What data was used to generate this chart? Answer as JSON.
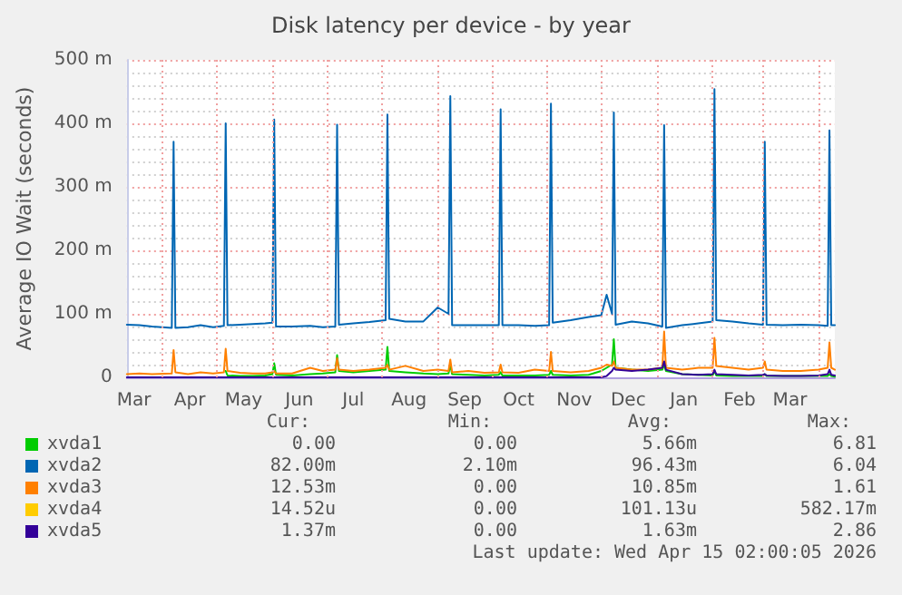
{
  "chart_data": {
    "type": "line",
    "title": "Disk latency per device - by year",
    "ylabel": "Average IO Wait (seconds)",
    "x": [
      "2025-03-12",
      "2025-03-19",
      "2025-03-26",
      "2025-04-06",
      "2025-04-07",
      "2025-04-08",
      "2025-04-15",
      "2025-04-22",
      "2025-04-29",
      "2025-05-05",
      "2025-05-06",
      "2025-05-07",
      "2025-05-14",
      "2025-05-21",
      "2025-05-28",
      "2025-06-01",
      "2025-06-02",
      "2025-06-03",
      "2025-06-12",
      "2025-06-22",
      "2025-06-29",
      "2025-07-06",
      "2025-07-07",
      "2025-07-08",
      "2025-07-16",
      "2025-07-25",
      "2025-08-03",
      "2025-08-04",
      "2025-08-05",
      "2025-08-14",
      "2025-08-24",
      "2025-09-01",
      "2025-09-07",
      "2025-09-08",
      "2025-09-09",
      "2025-09-18",
      "2025-09-27",
      "2025-10-05",
      "2025-10-06",
      "2025-10-07",
      "2025-10-16",
      "2025-10-25",
      "2025-11-02",
      "2025-11-03",
      "2025-11-04",
      "2025-11-14",
      "2025-11-24",
      "2025-12-01",
      "2025-12-04",
      "2025-12-07",
      "2025-12-08",
      "2025-12-09",
      "2025-12-18",
      "2025-12-27",
      "2026-01-04",
      "2026-01-05",
      "2026-01-06",
      "2026-01-15",
      "2026-01-24",
      "2026-02-01",
      "2026-02-02",
      "2026-02-03",
      "2026-02-12",
      "2026-02-21",
      "2026-03-01",
      "2026-03-02",
      "2026-03-03",
      "2026-03-12",
      "2026-03-22",
      "2026-04-01",
      "2026-04-06",
      "2026-04-07",
      "2026-04-08",
      "2026-04-10"
    ],
    "series": [
      {
        "name": "xvda1",
        "color": "#00cc00",
        "values": [
          null,
          null,
          null,
          null,
          null,
          null,
          null,
          null,
          null,
          null,
          10,
          3,
          2,
          2,
          3,
          5,
          22,
          4,
          3,
          5,
          6,
          8,
          35,
          10,
          8,
          10,
          12,
          48,
          10,
          8,
          6,
          5,
          6,
          20,
          5,
          4,
          3,
          4,
          8,
          3,
          3,
          3,
          4,
          10,
          4,
          3,
          4,
          10,
          15,
          20,
          60,
          15,
          12,
          10,
          12,
          20,
          10,
          5,
          4,
          3,
          10,
          3,
          2,
          2,
          2,
          5,
          2,
          2,
          2,
          2,
          2,
          5,
          2,
          1
        ]
      },
      {
        "name": "xvda2",
        "color": "#0066b3",
        "values": [
          83,
          82,
          80,
          78,
          371,
          78,
          79,
          82,
          79,
          81,
          400,
          82,
          83,
          84,
          85,
          86,
          406,
          80,
          80,
          81,
          79,
          80,
          398,
          83,
          85,
          87,
          90,
          414,
          92,
          88,
          88,
          110,
          100,
          443,
          82,
          82,
          82,
          82,
          422,
          82,
          82,
          81,
          82,
          431,
          86,
          90,
          95,
          98,
          130,
          100,
          417,
          83,
          88,
          85,
          80,
          397,
          78,
          82,
          85,
          88,
          454,
          90,
          88,
          85,
          83,
          371,
          83,
          82,
          83,
          82,
          81,
          389,
          82,
          82
        ]
      },
      {
        "name": "xvda3",
        "color": "#ff8000",
        "values": [
          5,
          6,
          5,
          6,
          43,
          8,
          5,
          8,
          6,
          8,
          45,
          10,
          7,
          6,
          6,
          8,
          10,
          6,
          6,
          15,
          10,
          12,
          30,
          12,
          10,
          12,
          15,
          20,
          12,
          18,
          10,
          12,
          10,
          28,
          8,
          10,
          7,
          8,
          20,
          8,
          7,
          12,
          10,
          40,
          10,
          8,
          10,
          15,
          20,
          18,
          25,
          15,
          12,
          12,
          15,
          72,
          15,
          12,
          15,
          15,
          62,
          18,
          15,
          12,
          15,
          25,
          12,
          10,
          10,
          12,
          15,
          55,
          15,
          12
        ]
      },
      {
        "name": "xvda4",
        "color": "#ffcc00",
        "values": [
          null,
          null,
          null,
          null,
          null,
          null,
          null,
          null,
          null,
          null,
          null,
          null,
          null,
          null,
          null,
          null,
          null,
          null,
          null,
          null,
          null,
          null,
          null,
          null,
          null,
          null,
          null,
          null,
          null,
          null,
          null,
          null,
          null,
          null,
          null,
          null,
          null,
          null,
          null,
          null,
          null,
          null,
          null,
          null,
          null,
          null,
          null,
          null,
          null,
          null,
          null,
          null,
          null,
          null,
          null,
          null,
          null,
          null,
          null,
          null,
          null,
          null,
          null,
          null,
          null,
          null,
          null,
          null,
          null,
          null,
          null,
          null,
          null,
          null
        ]
      },
      {
        "name": "xvda5",
        "color": "#330099",
        "values": [
          0,
          0,
          0,
          0,
          0,
          0,
          0,
          0,
          0,
          0,
          0,
          0,
          0,
          0,
          0,
          0,
          0,
          0,
          0,
          0,
          0,
          0,
          0,
          0,
          0,
          0,
          0,
          0,
          0,
          0,
          0,
          0,
          0,
          0,
          0,
          0,
          0,
          0,
          0,
          0,
          0,
          0,
          0,
          0,
          0,
          0,
          0,
          0,
          2,
          10,
          15,
          12,
          10,
          12,
          15,
          25,
          12,
          5,
          4,
          5,
          12,
          5,
          4,
          3,
          4,
          5,
          3,
          2,
          2,
          3,
          5,
          12,
          4,
          3
        ]
      }
    ],
    "xlim": [
      "2025-03-12",
      "2026-04-10"
    ],
    "xticks": [
      {
        "value": "2025-03-16",
        "label": "Mar"
      },
      {
        "value": "2025-04-01",
        "label": null
      },
      {
        "value": "2025-04-16",
        "label": "Apr"
      },
      {
        "value": "2025-05-01",
        "label": null
      },
      {
        "value": "2025-05-16",
        "label": "May"
      },
      {
        "value": "2025-06-01",
        "label": null
      },
      {
        "value": "2025-06-16",
        "label": "Jun"
      },
      {
        "value": "2025-07-01",
        "label": null
      },
      {
        "value": "2025-07-16",
        "label": "Jul"
      },
      {
        "value": "2025-08-01",
        "label": null
      },
      {
        "value": "2025-08-16",
        "label": "Aug"
      },
      {
        "value": "2025-09-01",
        "label": null
      },
      {
        "value": "2025-09-16",
        "label": "Sep"
      },
      {
        "value": "2025-10-01",
        "label": null
      },
      {
        "value": "2025-10-16",
        "label": "Oct"
      },
      {
        "value": "2025-11-01",
        "label": null
      },
      {
        "value": "2025-11-16",
        "label": "Nov"
      },
      {
        "value": "2025-12-01",
        "label": null
      },
      {
        "value": "2025-12-16",
        "label": "Dec"
      },
      {
        "value": "2026-01-01",
        "label": null
      },
      {
        "value": "2026-01-16",
        "label": "Jan"
      },
      {
        "value": "2026-02-01",
        "label": null
      },
      {
        "value": "2026-02-16",
        "label": "Feb"
      },
      {
        "value": "2026-03-01",
        "label": null
      },
      {
        "value": "2026-03-16",
        "label": "Mar"
      },
      {
        "value": "2026-04-01",
        "label": null
      }
    ],
    "ylim": [
      0,
      500
    ],
    "yticks": [
      0,
      {
        "value": 100,
        "label": "100 m"
      },
      {
        "value": 200,
        "label": "200 m"
      },
      {
        "value": 300,
        "label": "300 m"
      },
      {
        "value": 400,
        "label": "400 m"
      },
      {
        "value": 500,
        "label": "500 m"
      }
    ],
    "grid": true,
    "legend": "bottom left",
    "marker": "none",
    "line_style": "solid",
    "annotations": [
      "Cur:",
      "Min:",
      "Avg:",
      "Max:",
      "0.00",
      "0.00",
      "5.66m",
      "6.81",
      "82.00m",
      "2.10m",
      "96.43m",
      "6.04",
      "12.53m",
      "0.00",
      "10.85m",
      "1.61",
      "14.52u",
      "0.00",
      "101.13u",
      "582.17m",
      "1.37m",
      "0.00",
      "1.63m",
      "2.86",
      "Last update: Wed Apr 15 02:00:05 2026"
    ]
  }
}
